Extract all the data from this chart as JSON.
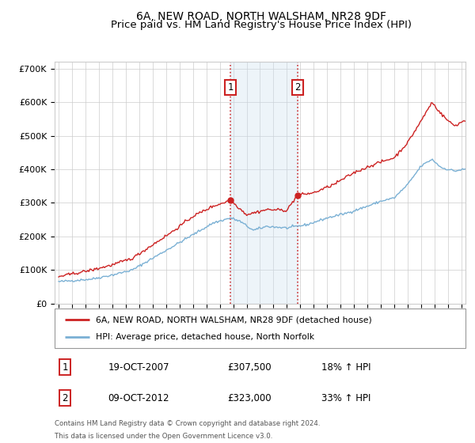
{
  "title": "6A, NEW ROAD, NORTH WALSHAM, NR28 9DF",
  "subtitle": "Price paid vs. HM Land Registry's House Price Index (HPI)",
  "ylim": [
    0,
    720000
  ],
  "yticks": [
    0,
    100000,
    200000,
    300000,
    400000,
    500000,
    600000,
    700000
  ],
  "ytick_labels": [
    "£0",
    "£100K",
    "£200K",
    "£300K",
    "£400K",
    "£500K",
    "£600K",
    "£700K"
  ],
  "xlim_start": 1994.7,
  "xlim_end": 2025.3,
  "background_color": "#ffffff",
  "grid_color": "#cccccc",
  "property_color": "#cc2222",
  "hpi_color": "#7ab0d4",
  "sale1_date": 2007.8,
  "sale1_price": 307500,
  "sale1_label": "1",
  "sale2_date": 2012.78,
  "sale2_price": 323000,
  "sale2_label": "2",
  "shade_color": "#cce0f0",
  "legend_property": "6A, NEW ROAD, NORTH WALSHAM, NR28 9DF (detached house)",
  "legend_hpi": "HPI: Average price, detached house, North Norfolk",
  "table_row1": [
    "1",
    "19-OCT-2007",
    "£307,500",
    "18% ↑ HPI"
  ],
  "table_row2": [
    "2",
    "09-OCT-2012",
    "£323,000",
    "33% ↑ HPI"
  ],
  "footnote1": "Contains HM Land Registry data © Crown copyright and database right 2024.",
  "footnote2": "This data is licensed under the Open Government Licence v3.0.",
  "title_fontsize": 10,
  "subtitle_fontsize": 9.5,
  "hpi_anchors_x": [
    1995.0,
    1996.0,
    1997.5,
    1999.0,
    2000.5,
    2002.0,
    2003.5,
    2005.0,
    2006.5,
    2007.8,
    2008.5,
    2009.5,
    2010.5,
    2012.0,
    2013.5,
    2015.0,
    2016.5,
    2018.0,
    2019.0,
    2020.0,
    2021.0,
    2022.0,
    2022.8,
    2023.5,
    2024.5,
    2025.2
  ],
  "hpi_anchors_y": [
    65000,
    68000,
    73000,
    85000,
    100000,
    135000,
    170000,
    205000,
    240000,
    255000,
    245000,
    218000,
    230000,
    225000,
    235000,
    255000,
    270000,
    290000,
    305000,
    315000,
    355000,
    410000,
    430000,
    405000,
    395000,
    400000
  ],
  "prop_anchors_x": [
    1995.0,
    1996.0,
    1997.5,
    1999.0,
    2000.5,
    2002.0,
    2003.5,
    2005.0,
    2006.5,
    2007.8,
    2009.0,
    2010.5,
    2012.0,
    2012.78,
    2014.0,
    2015.5,
    2017.0,
    2018.5,
    2020.0,
    2021.0,
    2022.0,
    2022.8,
    2023.5,
    2024.0,
    2024.5,
    2025.2
  ],
  "prop_anchors_y": [
    80000,
    88000,
    100000,
    115000,
    135000,
    175000,
    215000,
    260000,
    290000,
    307500,
    265000,
    280000,
    278000,
    323000,
    330000,
    355000,
    390000,
    415000,
    435000,
    480000,
    545000,
    600000,
    565000,
    545000,
    530000,
    545000
  ]
}
